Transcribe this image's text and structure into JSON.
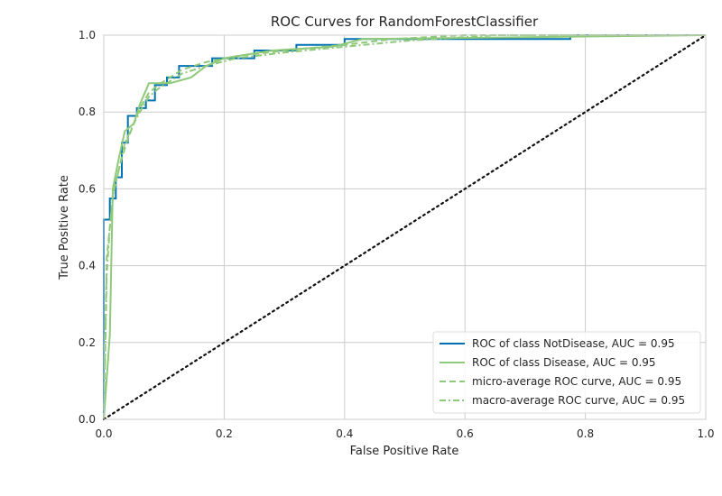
{
  "chart_data": {
    "type": "line",
    "title": "ROC Curves for RandomForestClassifier",
    "xlabel": "False Positive Rate",
    "ylabel": "True Positive Rate",
    "xlim": [
      0,
      1
    ],
    "ylim": [
      0,
      1
    ],
    "xticks": [
      "0.0",
      "0.2",
      "0.4",
      "0.6",
      "0.8",
      "1.0"
    ],
    "yticks": [
      "0.0",
      "0.2",
      "0.4",
      "0.6",
      "0.8",
      "1.0"
    ],
    "grid": true,
    "legend_position": "lower-right",
    "series": [
      {
        "name": "ROC of class NotDisease, AUC = 0.95",
        "color": "#0072b2",
        "style": "solid",
        "x": [
          0,
          0,
          0.01,
          0.01,
          0.02,
          0.02,
          0.03,
          0.03,
          0.04,
          0.04,
          0.055,
          0.055,
          0.07,
          0.07,
          0.085,
          0.085,
          0.105,
          0.105,
          0.125,
          0.125,
          0.18,
          0.18,
          0.25,
          0.25,
          0.32,
          0.32,
          0.4,
          0.4,
          0.775,
          0.775,
          1.0
        ],
        "y": [
          0,
          0.52,
          0.52,
          0.575,
          0.575,
          0.63,
          0.63,
          0.72,
          0.72,
          0.79,
          0.79,
          0.81,
          0.81,
          0.83,
          0.83,
          0.87,
          0.87,
          0.89,
          0.89,
          0.92,
          0.92,
          0.94,
          0.94,
          0.96,
          0.96,
          0.975,
          0.975,
          0.99,
          0.99,
          1.0,
          1.0
        ]
      },
      {
        "name": "ROC of class Disease, AUC = 0.95",
        "color": "#8fc97a",
        "style": "solid",
        "x": [
          0,
          0.01,
          0.01,
          0.015,
          0.015,
          0.025,
          0.025,
          0.035,
          0.035,
          0.05,
          0.05,
          0.06,
          0.06,
          0.075,
          0.075,
          0.11,
          0.11,
          0.145,
          0.145,
          0.17,
          0.17,
          0.2,
          0.2,
          0.28,
          0.28,
          0.38,
          0.38,
          0.43,
          0.43,
          1.0
        ],
        "y": [
          0,
          0.22,
          0.22,
          0.6,
          0.6,
          0.68,
          0.68,
          0.75,
          0.75,
          0.77,
          0.77,
          0.82,
          0.82,
          0.875,
          0.875,
          0.875,
          0.875,
          0.89,
          0.89,
          0.92,
          0.92,
          0.94,
          0.94,
          0.96,
          0.96,
          0.97,
          0.97,
          0.99,
          0.99,
          1.0
        ]
      },
      {
        "name": "micro-average ROC curve, AUC = 0.95",
        "color": "#8fc97a",
        "style": "dashed",
        "x": [
          0,
          0.005,
          0.01,
          0.015,
          0.02,
          0.03,
          0.04,
          0.05,
          0.06,
          0.075,
          0.09,
          0.11,
          0.13,
          0.17,
          0.22,
          0.3,
          0.4,
          0.48,
          0.6,
          1.0
        ],
        "y": [
          0,
          0.42,
          0.5,
          0.58,
          0.62,
          0.68,
          0.73,
          0.77,
          0.81,
          0.85,
          0.87,
          0.89,
          0.91,
          0.93,
          0.945,
          0.96,
          0.975,
          0.99,
          1.0,
          1.0
        ]
      },
      {
        "name": "macro-average ROC curve, AUC = 0.95",
        "color": "#8fc97a",
        "style": "dashdot",
        "x": [
          0,
          0.005,
          0.01,
          0.015,
          0.025,
          0.035,
          0.05,
          0.06,
          0.075,
          0.09,
          0.11,
          0.13,
          0.17,
          0.22,
          0.3,
          0.4,
          0.5,
          0.65,
          1.0
        ],
        "y": [
          0,
          0.38,
          0.5,
          0.58,
          0.65,
          0.72,
          0.77,
          0.8,
          0.84,
          0.86,
          0.88,
          0.9,
          0.92,
          0.94,
          0.955,
          0.97,
          0.985,
          1.0,
          1.0
        ]
      },
      {
        "name": "",
        "color": "#111111",
        "style": "dotted",
        "x": [
          0,
          1
        ],
        "y": [
          0,
          1
        ]
      }
    ]
  }
}
